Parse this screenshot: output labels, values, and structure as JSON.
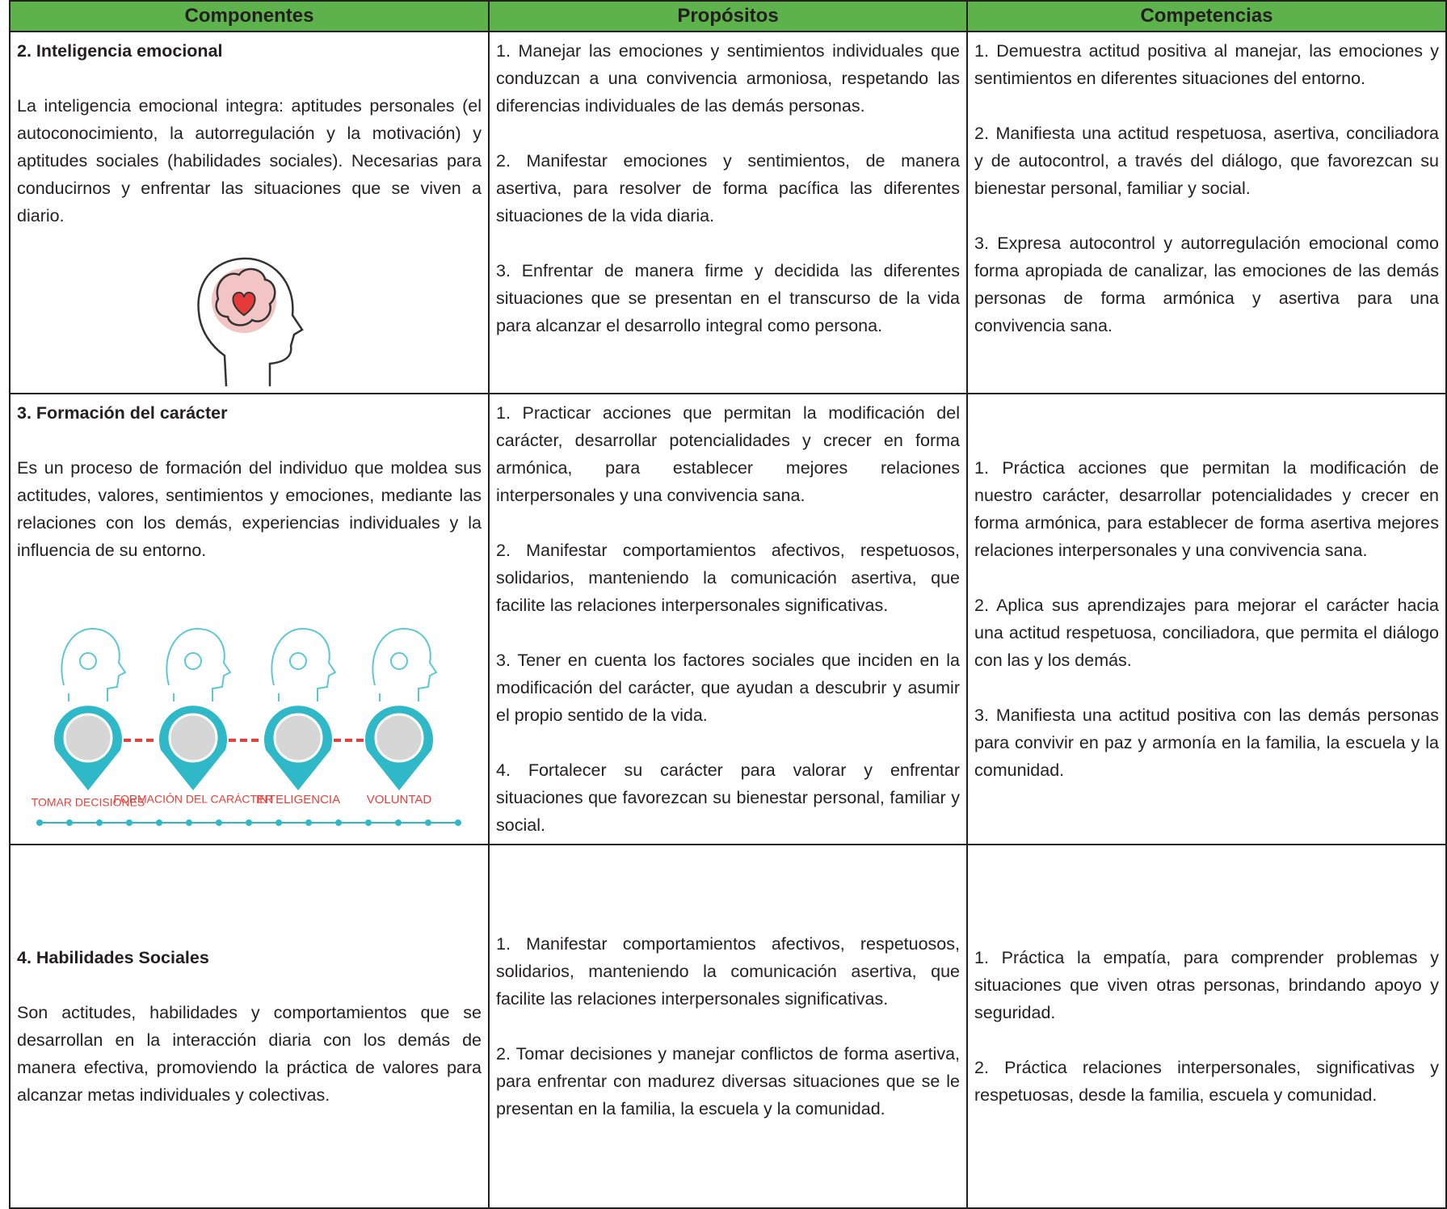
{
  "table": {
    "header": [
      "Componentes",
      "Propósitos",
      "Competencias"
    ],
    "rows": [
      {
        "component": {
          "title": "2. Inteligencia emocional",
          "text": "La inteligencia emocional integra: aptitudes personales (el autoconocimiento, la autorregulación y la motivación) y aptitudes sociales (habilidades sociales). Necesarias para conducirnos y enfrentar las situaciones que se viven a diario."
        },
        "purposes": [
          "1. Manejar las emociones y sentimientos individuales que conduzcan a una convivencia armoniosa, respetando las diferencias individuales de las demás personas.",
          "2. Manifestar emociones y sentimientos, de manera asertiva, para resolver de forma pacífica las diferentes situaciones de la vida diaria.",
          "3. Enfrentar de manera firme y decidida las diferentes situaciones que se presentan en el transcurso de la vida para alcanzar el desarrollo integral como persona."
        ],
        "competencies": [
          "1. Demuestra actitud positiva al manejar, las emociones y sentimientos en diferentes situaciones del entorno.",
          "2. Manifiesta una actitud respetuosa, asertiva, conciliadora y de autocontrol, a través del diálogo, que favorezcan su bienestar personal, familiar y social.",
          "3. Expresa autocontrol y autorregulación emocional como forma apropiada de canalizar, las emociones de las demás personas de forma armónica y asertiva para una convivencia sana."
        ]
      },
      {
        "component": {
          "title": "3. Formación del carácter",
          "text": "Es un proceso de formación del individuo que moldea sus actitudes, valores, sentimientos y emociones, mediante las relaciones con los demás, experiencias individuales y la influencia de su entorno.",
          "infographic": [
            "TOMAR DECISIONES",
            "FORMACIÓN DEL CARÁCTER",
            "INTELIGENCIA",
            "VOLUNTAD"
          ]
        },
        "purposes": [
          "1. Practicar acciones que permitan la modificación del carácter, desarrollar potencialidades y crecer en forma armónica, para establecer mejores relaciones interpersonales y una convivencia sana.",
          "2. Manifestar comportamientos afectivos, respetuosos, solidarios, manteniendo la comunicación asertiva, que facilite las relaciones interpersonales significativas.",
          "3. Tener en cuenta los factores sociales que inciden en la modificación del carácter, que ayudan a descubrir y asumir el propio sentido de la vida.",
          "4. Fortalecer su carácter para valorar y enfrentar situaciones que favorezcan su bienestar personal, familiar y social."
        ],
        "competencies": [
          "1. Práctica acciones que permitan la modificación de nuestro carácter, desarrollar potencialidades y crecer en forma armónica, para establecer de forma asertiva mejores relaciones interpersonales y una convivencia sana.",
          "2. Aplica sus aprendizajes para mejorar el carácter hacia una actitud respetuosa, conciliadora, que permita el diálogo con las y los demás.",
          "3. Manifiesta una actitud positiva con las demás personas para convivir en paz y armonía en la familia, la escuela y la comunidad."
        ]
      },
      {
        "component": {
          "title": "4. Habilidades Sociales",
          "text": "Son actitudes, habilidades y comportamientos que se desarrollan en la interacción diaria con los demás de manera efectiva, promoviendo la práctica de valores para alcanzar metas individuales y colectivas."
        },
        "purposes": [
          "1. Manifestar comportamientos afectivos, respetuosos, solidarios, manteniendo la comunicación asertiva, que facilite las relaciones interpersonales significativas.",
          "2. Tomar decisiones y manejar conflictos de forma asertiva, para enfrentar con madurez diversas situaciones que se le presentan en la familia, la escuela y la comunidad."
        ],
        "competencies": [
          "1. Práctica la empatía, para comprender problemas y situaciones que viven otras personas, brindando apoyo y seguridad.",
          "2. Práctica relaciones interpersonales, significativas y respetuosas, desde la familia, escuela y comunidad."
        ]
      }
    ]
  }
}
